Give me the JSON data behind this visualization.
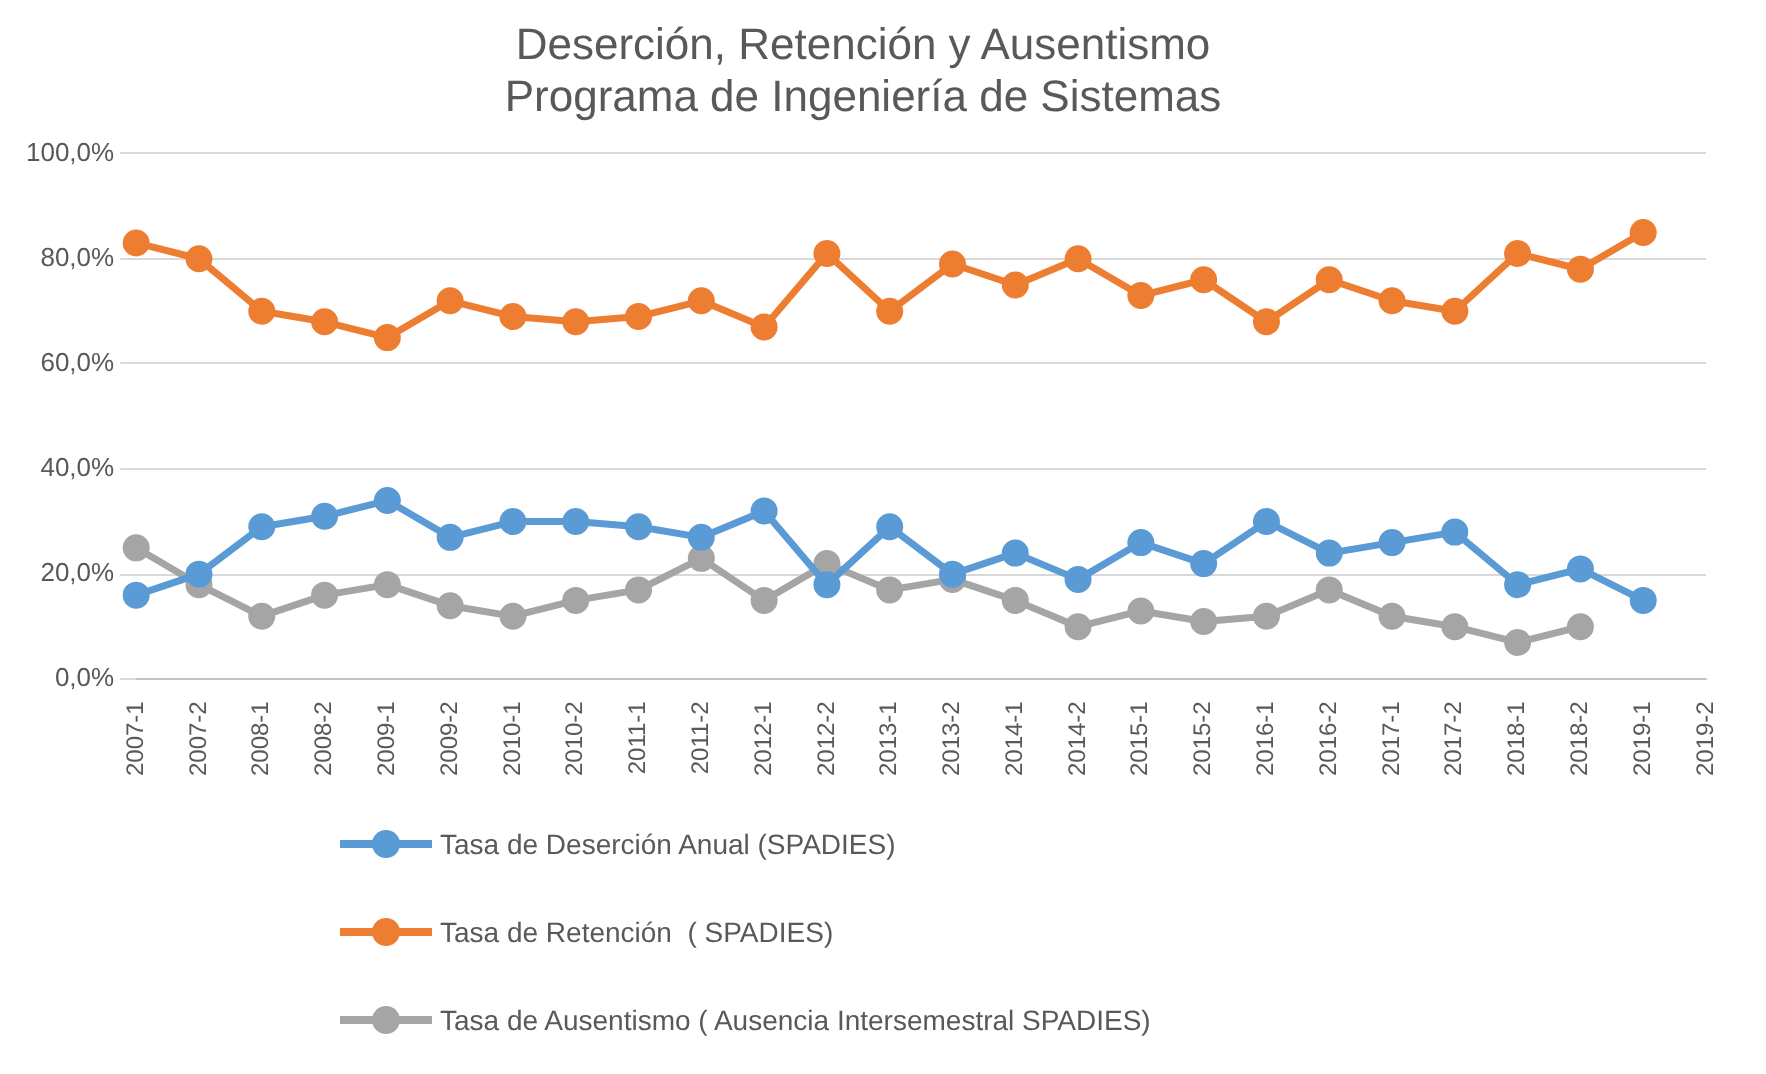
{
  "chart_data": {
    "type": "line",
    "title": "Deserción, Retención y Ausentismo\nPrograma de Ingeniería de Sistemas",
    "categories": [
      "2007-1",
      "2007-2",
      "2008-1",
      "2008-2",
      "2009-1",
      "2009-2",
      "2010-1",
      "2010-2",
      "2011-1",
      "2011-2",
      "2012-1",
      "2012-2",
      "2013-1",
      "2013-2",
      "2014-1",
      "2014-2",
      "2015-1",
      "2015-2",
      "2016-1",
      "2016-2",
      "2017-1",
      "2017-2",
      "2018-1",
      "2018-2",
      "2019-1",
      "2019-2"
    ],
    "series": [
      {
        "name": "Tasa de Deserción Anual (SPADIES)",
        "color": "#5b9bd5",
        "values": [
          16,
          20,
          29,
          31,
          34,
          27,
          30,
          30,
          29,
          27,
          32,
          18,
          29,
          20,
          24,
          19,
          26,
          22,
          30,
          24,
          26,
          28,
          18,
          21,
          15,
          null
        ]
      },
      {
        "name": "Tasa de Retención  ( SPADIES)",
        "color": "#ed7d31",
        "values": [
          83,
          80,
          70,
          68,
          65,
          72,
          69,
          68,
          69,
          72,
          67,
          81,
          70,
          79,
          75,
          80,
          73,
          76,
          68,
          76,
          72,
          70,
          81,
          78,
          85,
          null
        ]
      },
      {
        "name": "Tasa de Ausentismo ( Ausencia Intersemestral SPADIES)",
        "color": "#a5a5a5",
        "values": [
          25,
          18,
          12,
          16,
          18,
          14,
          12,
          15,
          17,
          23,
          15,
          22,
          17,
          19,
          15,
          10,
          13,
          11,
          12,
          17,
          12,
          10,
          7,
          10,
          null,
          null
        ]
      }
    ],
    "ylim": [
      0,
      100
    ],
    "yticks": [
      {
        "value": 0,
        "label": "0,0%"
      },
      {
        "value": 20,
        "label": "20,0%"
      },
      {
        "value": 40,
        "label": "40,0%"
      },
      {
        "value": 60,
        "label": "60,0%"
      },
      {
        "value": 80,
        "label": "80,0%"
      },
      {
        "value": 100,
        "label": "100,0%"
      }
    ],
    "grid": "y",
    "legend": "bottom",
    "marker": "circle",
    "line_style": "solid"
  }
}
